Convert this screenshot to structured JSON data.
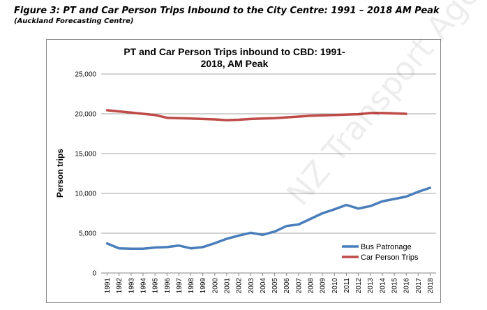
{
  "figure": {
    "title": "Figure 3: PT and Car Person Trips Inbound to the City Centre: 1991 – 2018 AM Peak",
    "subtitle": "(Auckland Forecasting Centre)"
  },
  "watermark": "NZ Transport Agency",
  "chart_data": {
    "type": "line",
    "title": "PT and Car Person Trips inbound to CBD: 1991-2018, AM Peak",
    "xlabel": "",
    "ylabel": "Person trips",
    "ylim": [
      0,
      25000
    ],
    "yticks": [
      0,
      5000,
      10000,
      15000,
      20000,
      25000
    ],
    "ytick_labels": [
      "0",
      "5,000",
      "10,000",
      "15,000",
      "20,000",
      "25,000"
    ],
    "x": [
      "1991",
      "1992",
      "1993",
      "1994",
      "1995",
      "1996",
      "1997",
      "1998",
      "1999",
      "2000",
      "2001",
      "2002",
      "2003",
      "2004",
      "2005",
      "2006",
      "2007",
      "2008",
      "2009",
      "2010",
      "2011",
      "2012",
      "2013",
      "2014",
      "2015",
      "2016",
      "2017",
      "2018"
    ],
    "grid": true,
    "legend": "bottom-right",
    "series": [
      {
        "name": "Bus Patronage",
        "color": "#4a7ebb",
        "values": [
          3700,
          3100,
          3050,
          3050,
          3200,
          3250,
          3450,
          3100,
          3250,
          3750,
          4300,
          4700,
          5050,
          4800,
          5200,
          5900,
          6100,
          6800,
          7500,
          8000,
          8550,
          8100,
          8400,
          9000,
          9300,
          9600,
          10200,
          10700
        ]
      },
      {
        "name": "Car Person Trips",
        "color": "#be4b48",
        "values": [
          20450,
          20300,
          20150,
          20000,
          19850,
          19500,
          19450,
          19400,
          19350,
          19300,
          19200,
          19250,
          19350,
          19400,
          19450,
          19550,
          19650,
          19750,
          19800,
          19850,
          19900,
          19950,
          20100,
          20100,
          20050,
          20000,
          null,
          null
        ]
      }
    ]
  }
}
